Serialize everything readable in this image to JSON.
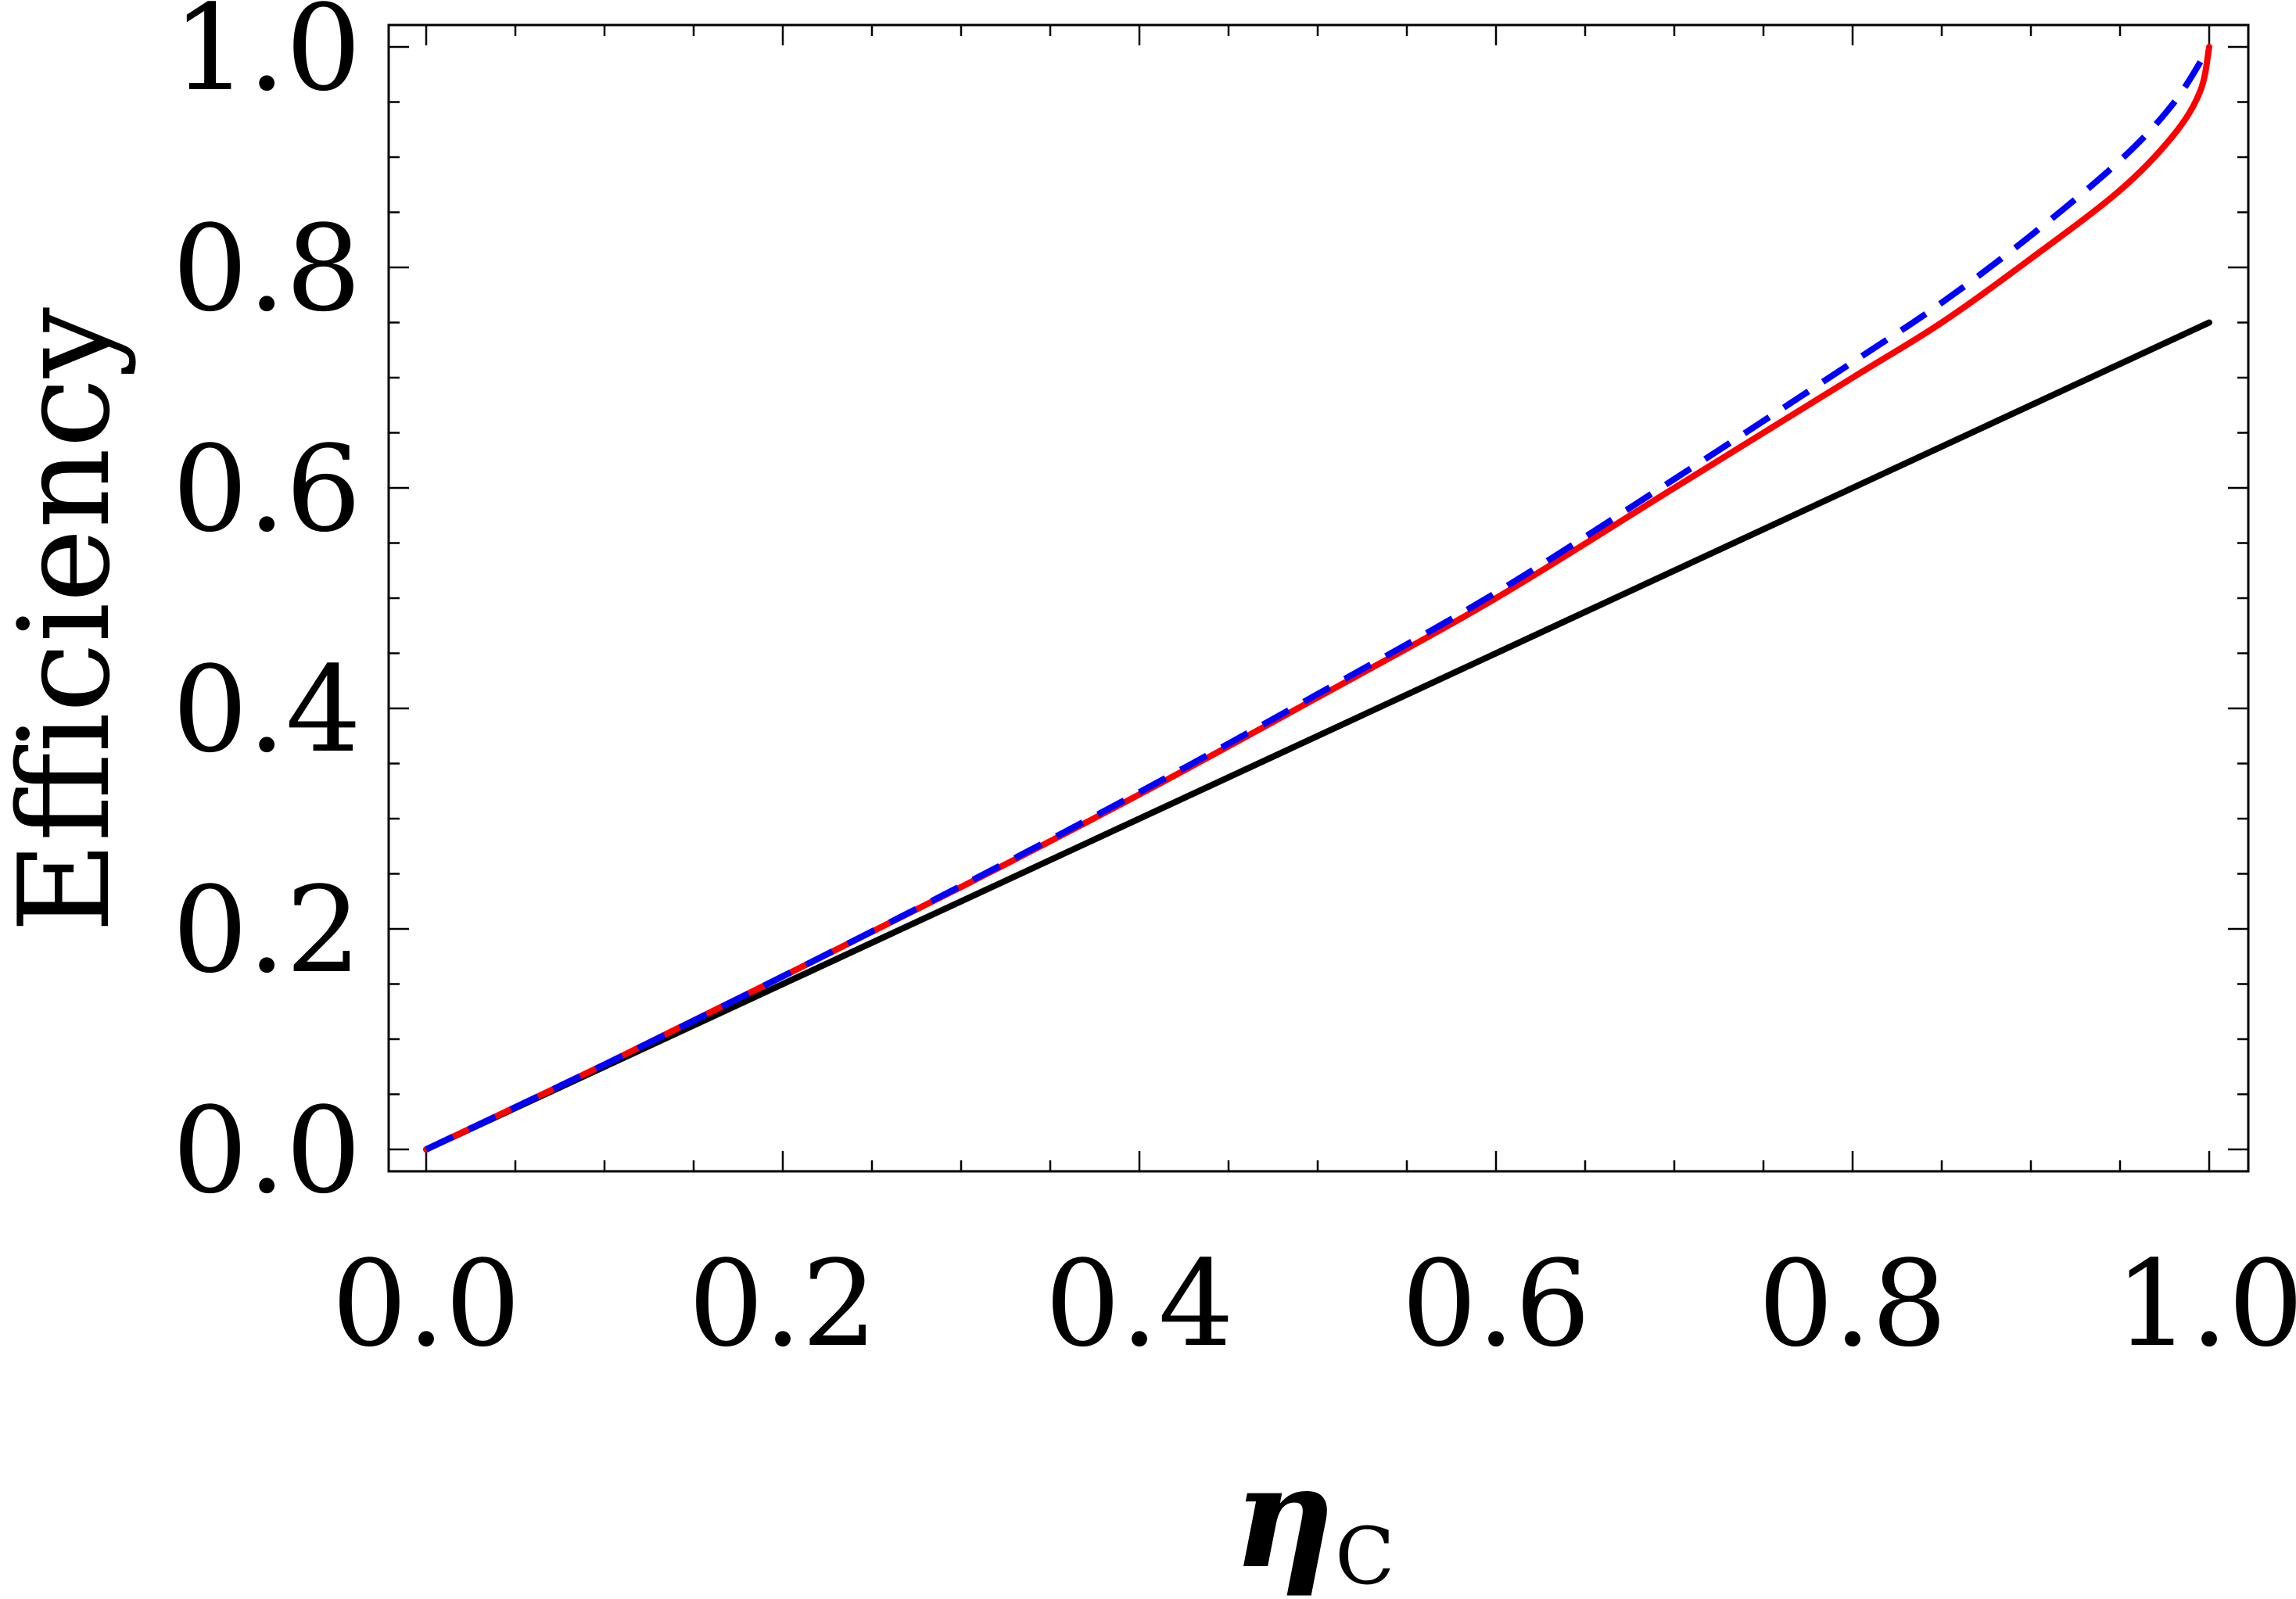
{
  "chart_data": {
    "type": "line",
    "title": "",
    "xlabel": "η",
    "xlabel_subscript": "C",
    "ylabel": "Efficiency",
    "xlim": [
      0,
      1.0
    ],
    "ylim": [
      0,
      1.0
    ],
    "x_ticks": [
      "0.0",
      "0.2",
      "0.4",
      "0.6",
      "0.8",
      "1.0"
    ],
    "y_ticks": [
      "0.0",
      "0.2",
      "0.4",
      "0.6",
      "0.8",
      "1.0"
    ],
    "grid": false,
    "legend": false,
    "series": [
      {
        "color": "#000000",
        "style": "solid",
        "points": [
          [
            0.0,
            0.0
          ],
          [
            1.0,
            0.75
          ]
        ]
      },
      {
        "color": "#ff0000",
        "style": "solid",
        "points": [
          [
            0.0,
            0.0
          ],
          [
            0.1,
            0.077
          ],
          [
            0.2,
            0.157
          ],
          [
            0.3,
            0.238
          ],
          [
            0.4,
            0.322
          ],
          [
            0.5,
            0.41
          ],
          [
            0.6,
            0.5
          ],
          [
            0.7,
            0.6
          ],
          [
            0.8,
            0.7
          ],
          [
            0.85,
            0.75
          ],
          [
            0.9,
            0.808
          ],
          [
            0.95,
            0.87
          ],
          [
            0.98,
            0.92
          ],
          [
            0.995,
            0.96
          ],
          [
            1.0,
            1.0
          ]
        ]
      },
      {
        "color": "#0000ff",
        "style": "dashed",
        "points": [
          [
            0.0,
            0.0
          ],
          [
            0.1,
            0.077
          ],
          [
            0.2,
            0.157
          ],
          [
            0.3,
            0.239
          ],
          [
            0.4,
            0.324
          ],
          [
            0.5,
            0.413
          ],
          [
            0.6,
            0.505
          ],
          [
            0.7,
            0.608
          ],
          [
            0.8,
            0.714
          ],
          [
            0.85,
            0.768
          ],
          [
            0.9,
            0.829
          ],
          [
            0.95,
            0.897
          ],
          [
            0.98,
            0.949
          ],
          [
            1.0,
            1.0
          ]
        ]
      }
    ]
  }
}
